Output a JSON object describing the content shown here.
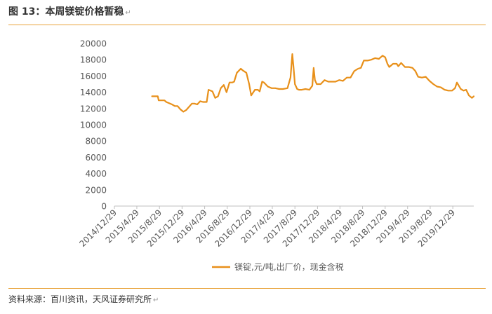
{
  "header": {
    "title": "图 13：本周镁锭价格暂稳",
    "return_mark": "↵"
  },
  "footer": {
    "source": "资料来源：百川资讯，天风证券研究所",
    "return_mark": "↵"
  },
  "colors": {
    "accent": "#E8A33A",
    "series": "#E8901A",
    "axis_text": "#595959"
  },
  "chart_data": {
    "type": "line",
    "title": "",
    "xlabel": "",
    "ylabel": "",
    "ylim": [
      0,
      20000
    ],
    "yticks": [
      0,
      2000,
      4000,
      6000,
      8000,
      10000,
      12000,
      14000,
      16000,
      18000,
      20000
    ],
    "x_range": [
      "2014-12-29",
      "2020-04-20"
    ],
    "xticks": [
      "2014/12/29",
      "2015/4/29",
      "2015/8/29",
      "2015/12/29",
      "2016/4/29",
      "2016/8/29",
      "2016/12/29",
      "2017/4/29",
      "2017/8/29",
      "2017/12/29",
      "2018/4/29",
      "2018/8/29",
      "2018/12/29",
      "2019/4/29",
      "2019/8/29",
      "2019/12/29"
    ],
    "grid": false,
    "legend_position": "bottom",
    "series": [
      {
        "name": "镁锭,元/吨,出厂价，现金含税",
        "x": [
          "2015-07-20",
          "2015-08-20",
          "2015-08-25",
          "2015-09-25",
          "2015-10-05",
          "2015-11-05",
          "2015-11-20",
          "2015-12-05",
          "2015-12-20",
          "2016-01-05",
          "2016-01-20",
          "2016-02-20",
          "2016-03-05",
          "2016-03-20",
          "2016-04-05",
          "2016-04-20",
          "2016-05-10",
          "2016-05-20",
          "2016-06-10",
          "2016-06-25",
          "2016-07-10",
          "2016-07-25",
          "2016-08-10",
          "2016-08-25",
          "2016-09-10",
          "2016-09-25",
          "2016-10-05",
          "2016-10-20",
          "2016-11-10",
          "2016-11-20",
          "2016-12-10",
          "2016-12-25",
          "2017-01-05",
          "2017-01-25",
          "2017-02-10",
          "2017-02-20",
          "2017-03-05",
          "2017-03-15",
          "2017-04-05",
          "2017-04-25",
          "2017-05-15",
          "2017-06-05",
          "2017-06-25",
          "2017-07-20",
          "2017-08-05",
          "2017-08-15",
          "2017-08-22",
          "2017-08-29",
          "2017-09-10",
          "2017-09-20",
          "2017-10-05",
          "2017-10-25",
          "2017-11-15",
          "2017-12-01",
          "2017-12-08",
          "2017-12-15",
          "2017-12-25",
          "2018-01-15",
          "2018-02-05",
          "2018-02-25",
          "2018-03-15",
          "2018-04-05",
          "2018-04-25",
          "2018-05-15",
          "2018-06-05",
          "2018-06-25",
          "2018-07-15",
          "2018-08-05",
          "2018-08-20",
          "2018-09-05",
          "2018-09-25",
          "2018-10-15",
          "2018-11-05",
          "2018-11-25",
          "2018-12-15",
          "2018-12-29",
          "2019-01-10",
          "2019-01-20",
          "2019-02-10",
          "2019-03-01",
          "2019-03-10",
          "2019-03-25",
          "2019-04-15",
          "2019-05-05",
          "2019-05-25",
          "2019-06-10",
          "2019-06-25",
          "2019-07-15",
          "2019-08-05",
          "2019-08-25",
          "2019-09-15",
          "2019-10-05",
          "2019-10-25",
          "2019-11-15",
          "2019-12-05",
          "2019-12-25",
          "2020-01-10",
          "2020-01-20",
          "2020-02-10",
          "2020-02-25",
          "2020-03-10",
          "2020-03-25",
          "2020-04-10",
          "2020-04-20"
        ],
        "values": [
          13500,
          13500,
          13000,
          13000,
          12800,
          12500,
          12300,
          12300,
          11900,
          11600,
          11800,
          12600,
          12600,
          12500,
          12900,
          12800,
          12800,
          14300,
          14100,
          13300,
          13500,
          14500,
          14900,
          14000,
          15200,
          15200,
          15300,
          16400,
          16900,
          16700,
          16400,
          15000,
          13600,
          14300,
          14300,
          14100,
          15300,
          15200,
          14700,
          14500,
          14500,
          14400,
          14400,
          14500,
          15800,
          18700,
          17000,
          15000,
          14400,
          14300,
          14300,
          14400,
          14300,
          14800,
          17000,
          15500,
          15000,
          15000,
          15500,
          15300,
          15300,
          15300,
          15500,
          15400,
          15800,
          15800,
          16600,
          16900,
          17000,
          17900,
          17900,
          18000,
          18200,
          18100,
          18500,
          18300,
          17500,
          17100,
          17500,
          17500,
          17200,
          17600,
          17100,
          17100,
          17000,
          16600,
          15900,
          15800,
          15900,
          15400,
          15000,
          14700,
          14600,
          14300,
          14200,
          14200,
          14500,
          15200,
          14400,
          14200,
          14300,
          13600,
          13300,
          13500
        ]
      }
    ]
  }
}
